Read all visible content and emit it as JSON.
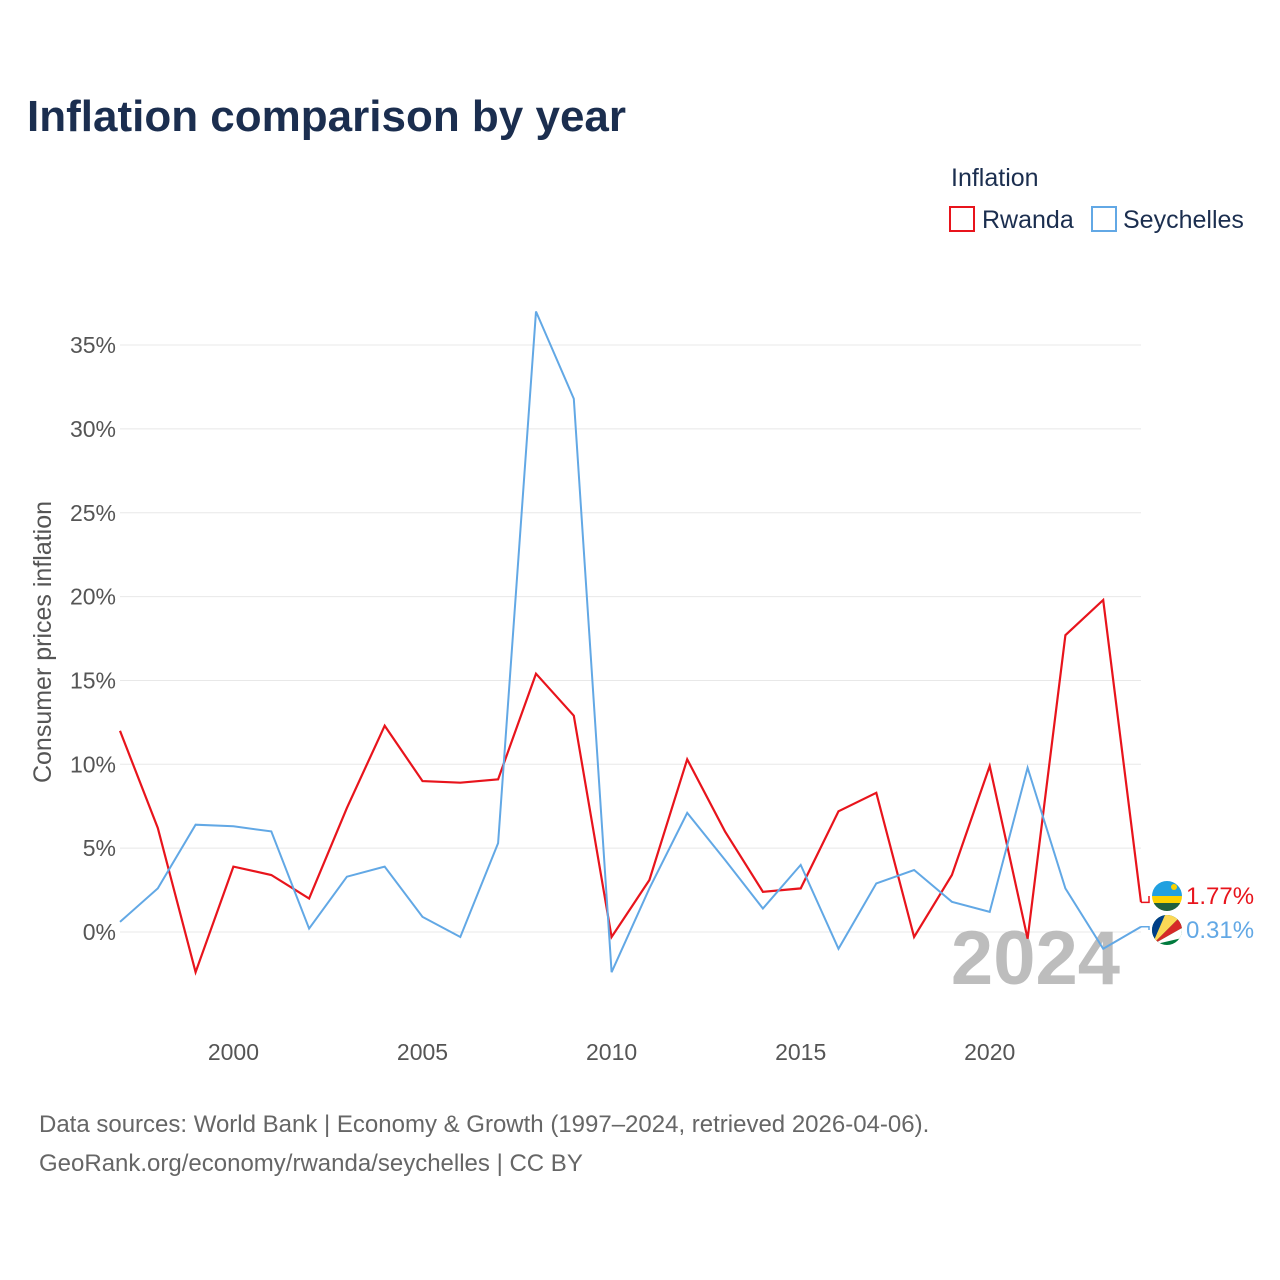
{
  "title": "Inflation comparison by year",
  "legend": {
    "title": "Inflation",
    "items": [
      {
        "label": "Rwanda",
        "color": "#e8141c"
      },
      {
        "label": "Seychelles",
        "color": "#62a8e5"
      }
    ]
  },
  "year_watermark": "2024",
  "source": {
    "line1": "Data sources: World Bank | Economy & Growth (1997–2024, retrieved 2026-04-06).",
    "line2": "GeoRank.org/economy/rwanda/seychelles | CC BY"
  },
  "chart_data": {
    "type": "line",
    "title": "Inflation comparison by year",
    "xlabel": "",
    "ylabel": "Consumer prices inflation",
    "x": [
      1997,
      1998,
      1999,
      2000,
      2001,
      2002,
      2003,
      2004,
      2005,
      2006,
      2007,
      2008,
      2009,
      2010,
      2011,
      2012,
      2013,
      2014,
      2015,
      2016,
      2017,
      2018,
      2019,
      2020,
      2021,
      2022,
      2023,
      2024
    ],
    "xlim": [
      1997,
      2024
    ],
    "ylim": [
      -5,
      37
    ],
    "x_ticks": [
      2000,
      2005,
      2010,
      2015,
      2020
    ],
    "x_tick_labels": [
      "2000",
      "2005",
      "2010",
      "2015",
      "2020"
    ],
    "y_ticks": [
      0,
      5,
      10,
      15,
      20,
      25,
      30,
      35
    ],
    "y_tick_labels": [
      "0%",
      "5%",
      "10%",
      "15%",
      "20%",
      "25%",
      "30%",
      "35%"
    ],
    "grid": true,
    "legend_position": "top-right",
    "series": [
      {
        "name": "Rwanda",
        "color": "#e8141c",
        "end_label": "1.77%",
        "values": [
          12.0,
          6.2,
          -2.4,
          3.9,
          3.4,
          2.0,
          7.4,
          12.3,
          9.0,
          8.9,
          9.1,
          15.4,
          12.9,
          -0.3,
          3.1,
          10.3,
          6.0,
          2.4,
          2.6,
          7.2,
          8.3,
          -0.3,
          3.4,
          9.9,
          -0.4,
          17.7,
          19.8,
          1.77
        ]
      },
      {
        "name": "Seychelles",
        "color": "#62a8e5",
        "end_label": "0.31%",
        "values": [
          0.6,
          2.6,
          6.4,
          6.3,
          6.0,
          0.2,
          3.3,
          3.9,
          0.9,
          -0.3,
          5.3,
          37.0,
          31.8,
          -2.4,
          2.6,
          7.1,
          4.3,
          1.4,
          4.0,
          -1.0,
          2.9,
          3.7,
          1.8,
          1.2,
          9.8,
          2.6,
          -1.0,
          0.31
        ]
      }
    ]
  }
}
